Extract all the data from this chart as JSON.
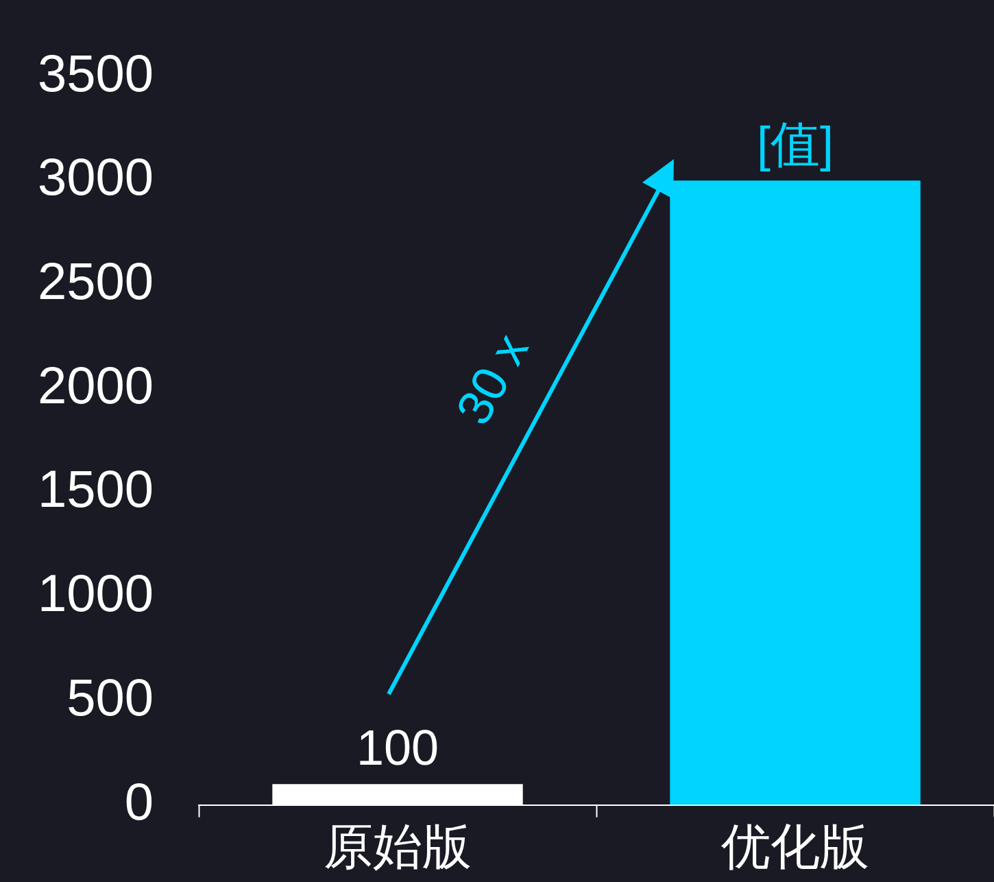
{
  "chart_data": {
    "type": "bar",
    "categories": [
      "原始版",
      "优化版"
    ],
    "values": [
      100,
      3000
    ],
    "colors": [
      "#ffffff",
      "#00d4ff"
    ],
    "value_labels": [
      "100",
      "[值]"
    ],
    "ylim": [
      0,
      3500
    ],
    "yticks": [
      0,
      500,
      1000,
      1500,
      2000,
      2500,
      3000,
      3500
    ],
    "grid": false,
    "legend": false,
    "annotations": [
      "30 x"
    ]
  }
}
